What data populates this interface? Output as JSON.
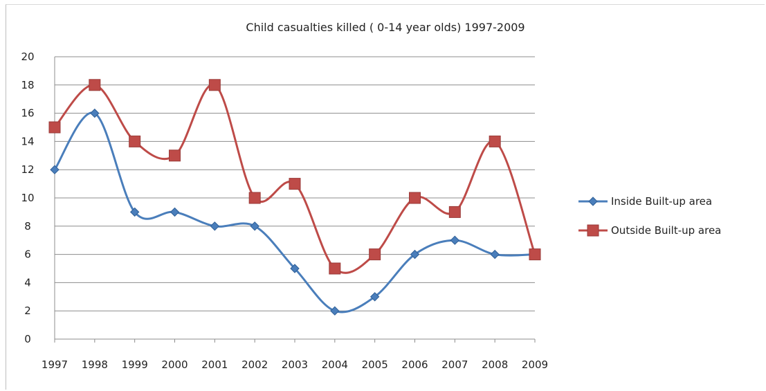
{
  "chart_data": {
    "type": "line",
    "title": "Child casualties killed ( 0-14 year olds) 1997-2009",
    "xlabel": "",
    "ylabel": "",
    "categories": [
      "1997",
      "1998",
      "1999",
      "2000",
      "2001",
      "2002",
      "2003",
      "2004",
      "2005",
      "2006",
      "2007",
      "2008",
      "2009"
    ],
    "ylim": [
      0,
      20
    ],
    "yticks": [
      "0",
      "2",
      "4",
      "6",
      "8",
      "10",
      "12",
      "14",
      "16",
      "18",
      "20"
    ],
    "grid": true,
    "smooth": true,
    "legend_position": "right",
    "series": [
      {
        "name": "Inside Built-up area",
        "color": "#4a7ebb",
        "marker": "diamond",
        "values": [
          12,
          16,
          9,
          9,
          8,
          8,
          5,
          2,
          3,
          6,
          7,
          6,
          6
        ]
      },
      {
        "name": "Outside Built-up area",
        "color": "#be4b48",
        "marker": "square",
        "values": [
          15,
          18,
          14,
          13,
          18,
          10,
          11,
          5,
          6,
          10,
          9,
          14,
          6
        ]
      }
    ]
  }
}
